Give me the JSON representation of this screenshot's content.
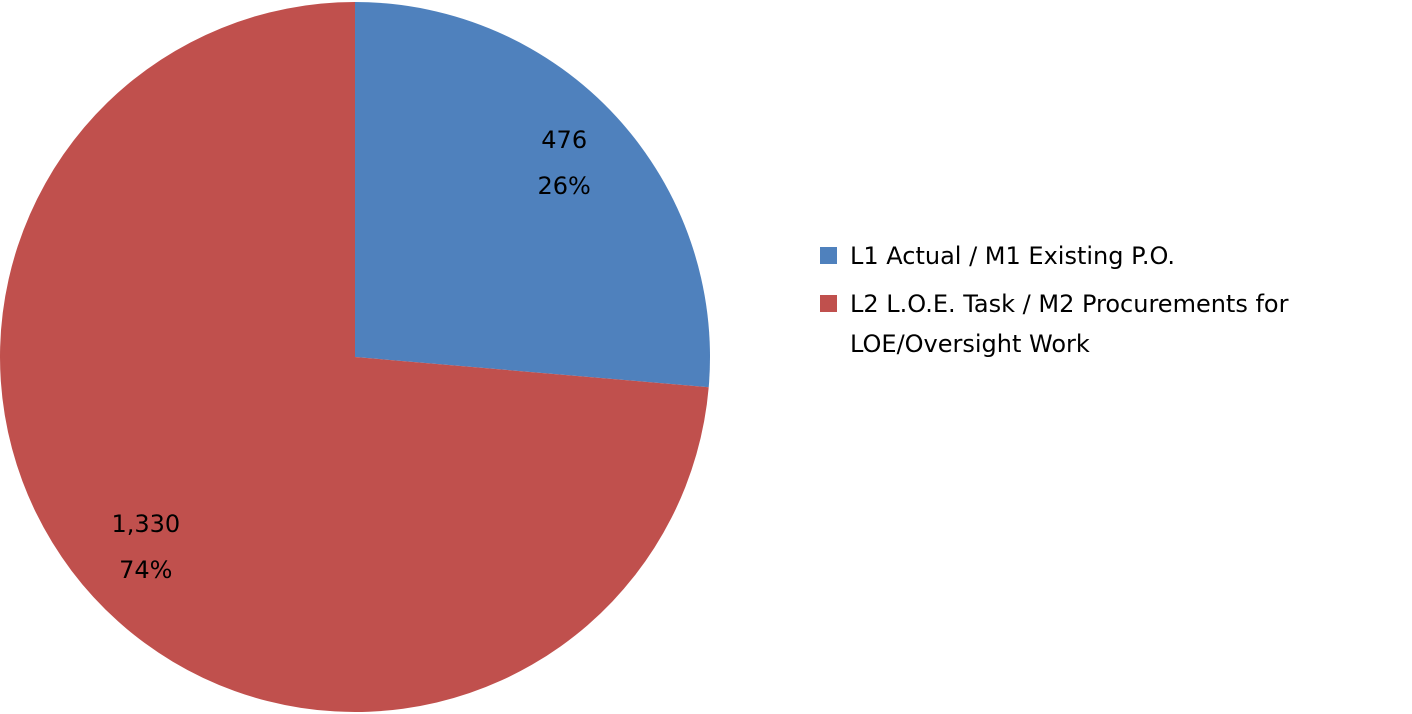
{
  "chart_data": {
    "type": "pie",
    "categories": [
      "L1 Actual / M1 Existing P.O.",
      "L2 L.O.E. Task / M2 Procurements for LOE/Oversight Work"
    ],
    "values": [
      476,
      1330
    ],
    "value_labels": [
      "476",
      "1,330"
    ],
    "percents": [
      26,
      74
    ],
    "percent_labels": [
      "26%",
      "74%"
    ],
    "colors": [
      "#4f81bd",
      "#c0504d"
    ],
    "legend": "right"
  }
}
